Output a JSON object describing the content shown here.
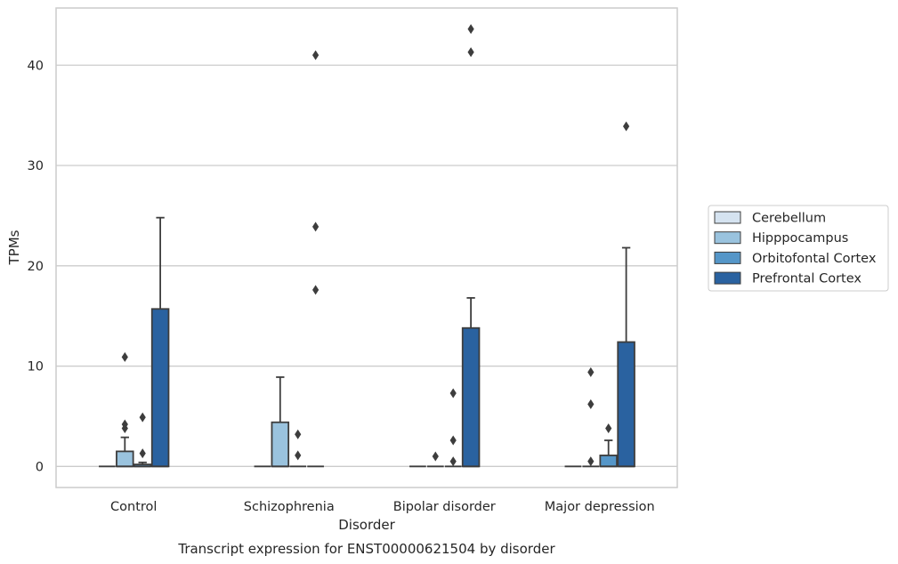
{
  "chart_data": {
    "type": "box",
    "xlabel": "Disorder",
    "ylabel": "TPMs",
    "caption": "Transcript expression for ENST00000621504 by disorder",
    "categories": [
      "Control",
      "Schizophrenia",
      "Bipolar disorder",
      "Major depression"
    ],
    "yticks": [
      0,
      10,
      20,
      30,
      40
    ],
    "ylim": [
      -2.1,
      45.7
    ],
    "grid": "horizontal",
    "legend_position": "right",
    "series": [
      {
        "name": "Cerebellum",
        "color": "#d5e3f0",
        "boxes": [
          {
            "min": 0,
            "q1": 0,
            "median": 0,
            "q3": 0,
            "max": 0,
            "outliers": []
          },
          {
            "min": 0,
            "q1": 0,
            "median": 0,
            "q3": 0,
            "max": 0,
            "outliers": []
          },
          {
            "min": 0,
            "q1": 0,
            "median": 0,
            "q3": 0,
            "max": 0,
            "outliers": []
          },
          {
            "min": 0,
            "q1": 0,
            "median": 0,
            "q3": 0,
            "max": 0,
            "outliers": []
          }
        ]
      },
      {
        "name": "Hipppocampus",
        "color": "#9ac3de",
        "boxes": [
          {
            "min": 0,
            "q1": 0,
            "median": 0,
            "q3": 1.5,
            "max": 2.9,
            "outliers": [
              3.8,
              4.2,
              10.9
            ]
          },
          {
            "min": 0,
            "q1": 0,
            "median": 0,
            "q3": 4.4,
            "max": 8.9,
            "outliers": []
          },
          {
            "min": 0,
            "q1": 0,
            "median": 0,
            "q3": 0,
            "max": 0,
            "outliers": [
              1.0
            ]
          },
          {
            "min": 0,
            "q1": 0,
            "median": 0,
            "q3": 0,
            "max": 0,
            "outliers": [
              0.5,
              6.2,
              9.4
            ]
          }
        ]
      },
      {
        "name": "Orbitofontal Cortex",
        "color": "#5596c8",
        "boxes": [
          {
            "min": 0,
            "q1": 0,
            "median": 0,
            "q3": 0.2,
            "max": 0.4,
            "outliers": [
              1.3,
              4.9
            ]
          },
          {
            "min": 0,
            "q1": 0,
            "median": 0,
            "q3": 0,
            "max": 0,
            "outliers": [
              1.1,
              3.2
            ]
          },
          {
            "min": 0,
            "q1": 0,
            "median": 0,
            "q3": 0,
            "max": 0,
            "outliers": [
              0.5,
              2.6,
              7.3
            ]
          },
          {
            "min": 0,
            "q1": 0,
            "median": 0,
            "q3": 1.1,
            "max": 2.6,
            "outliers": [
              3.8
            ]
          }
        ]
      },
      {
        "name": "Prefrontal Cortex",
        "color": "#2a62a0",
        "boxes": [
          {
            "min": 0,
            "q1": 0,
            "median": 0,
            "q3": 15.7,
            "max": 24.8,
            "outliers": []
          },
          {
            "min": 0,
            "q1": 0,
            "median": 0,
            "q3": 0,
            "max": 0,
            "outliers": [
              17.6,
              23.9,
              41.0
            ]
          },
          {
            "min": 0,
            "q1": 0,
            "median": 0,
            "q3": 13.8,
            "max": 16.8,
            "outliers": [
              41.3,
              43.6
            ]
          },
          {
            "min": 0,
            "q1": 0,
            "median": 0,
            "q3": 12.4,
            "max": 21.8,
            "outliers": [
              33.9
            ]
          }
        ]
      }
    ]
  }
}
